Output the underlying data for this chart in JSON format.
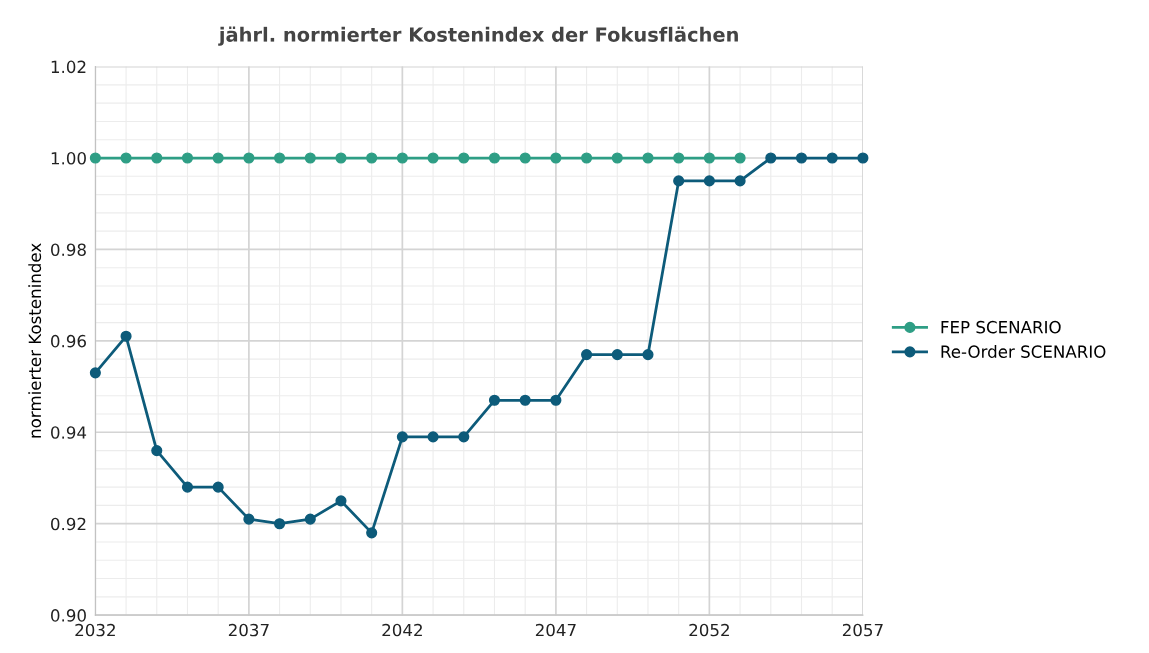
{
  "chart_data": {
    "type": "line",
    "title": "jährl. normierter Kostenindex der Fokusflächen",
    "ylabel": "normierter Kostenindex",
    "x": [
      2032,
      2033,
      2034,
      2035,
      2036,
      2037,
      2038,
      2039,
      2040,
      2041,
      2042,
      2043,
      2044,
      2045,
      2046,
      2047,
      2048,
      2049,
      2050,
      2051,
      2052,
      2053,
      2054,
      2055,
      2056,
      2057
    ],
    "series": [
      {
        "name": "FEP SCENARIO",
        "color": "#2e9e85",
        "values": [
          1,
          1,
          1,
          1,
          1,
          1,
          1,
          1,
          1,
          1,
          1,
          1,
          1,
          1,
          1,
          1,
          1,
          1,
          1,
          1,
          1,
          1,
          null,
          null,
          null,
          null
        ]
      },
      {
        "name": "Re-Order SCENARIO",
        "color": "#0d5b7a",
        "values": [
          0.953,
          0.961,
          0.936,
          0.928,
          0.928,
          0.921,
          0.92,
          0.921,
          0.925,
          0.918,
          0.939,
          0.939,
          0.939,
          0.947,
          0.947,
          0.947,
          0.957,
          0.957,
          0.957,
          0.995,
          0.995,
          0.995,
          1,
          1,
          1,
          1
        ]
      }
    ],
    "xlim": [
      2032,
      2057
    ],
    "xticks": [
      2032,
      2037,
      2042,
      2047,
      2052,
      2057
    ],
    "ylim": [
      0.9,
      1.02
    ],
    "yticks": [
      {
        "value": 0.9,
        "label": "0.90"
      },
      {
        "value": 0.92,
        "label": "0.92"
      },
      {
        "value": 0.94,
        "label": "0.94"
      },
      {
        "value": 0.96,
        "label": "0.96"
      },
      {
        "value": 0.98,
        "label": "0.98"
      },
      {
        "value": 1.0,
        "label": "1.00"
      },
      {
        "value": 1.02,
        "label": "1.02"
      }
    ],
    "grid": true,
    "legend": "right",
    "marker": "circle",
    "line_style": "solid"
  }
}
